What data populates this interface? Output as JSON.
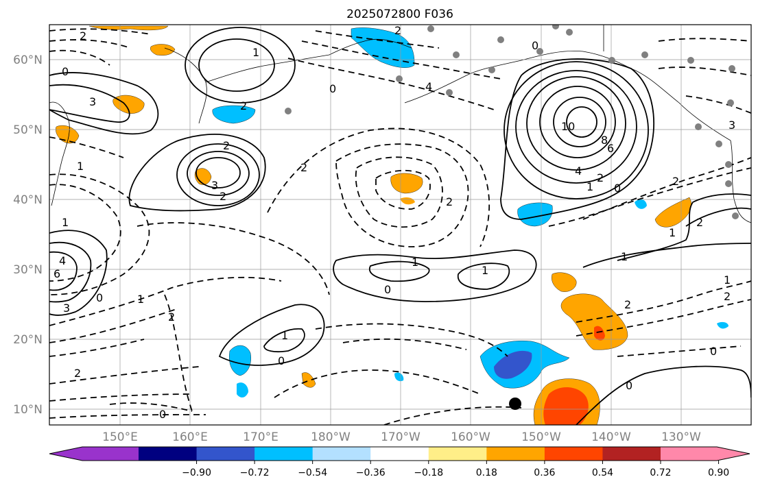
{
  "title": "2025072800 F036",
  "lat_ticks": [
    "60°N",
    "50°N",
    "40°N",
    "30°N",
    "20°N",
    "10°N"
  ],
  "lon_ticks": [
    "150°E",
    "160°E",
    "170°E",
    "180°W",
    "170°W",
    "160°W",
    "150°W",
    "140°W",
    "130°W"
  ],
  "colorbar": {
    "ticks": [
      "−0.90",
      "−0.72",
      "−0.54",
      "−0.36",
      "−0.18",
      "0.18",
      "0.36",
      "0.54",
      "0.72",
      "0.90"
    ],
    "colors": [
      "#9933cc",
      "#000080",
      "#3355cc",
      "#00bfff",
      "#b3e0ff",
      "#ffffff",
      "#ffee88",
      "#ffa500",
      "#ff4500",
      "#b22222",
      "#ff88aa"
    ]
  },
  "contour_labels": [
    "2",
    "0",
    "1",
    "3",
    "2",
    "3",
    "2",
    "2",
    "0",
    "2",
    "1",
    "1",
    "10",
    "8",
    "6",
    "4",
    "2",
    "1",
    "0",
    "0",
    "2",
    "2",
    "1",
    "2",
    "1",
    "1",
    "1",
    "0",
    "1",
    "2",
    "1",
    "2",
    "0",
    "0",
    "2",
    "3",
    "4",
    "6",
    "1",
    "2",
    "0",
    "0",
    "0",
    "4",
    "2",
    "3"
  ],
  "shading_colors": {
    "orange": "#ffa500",
    "red": "#ff4500",
    "lightblue": "#00bfff",
    "blue": "#3355cc",
    "yellow": "#ffee88"
  }
}
